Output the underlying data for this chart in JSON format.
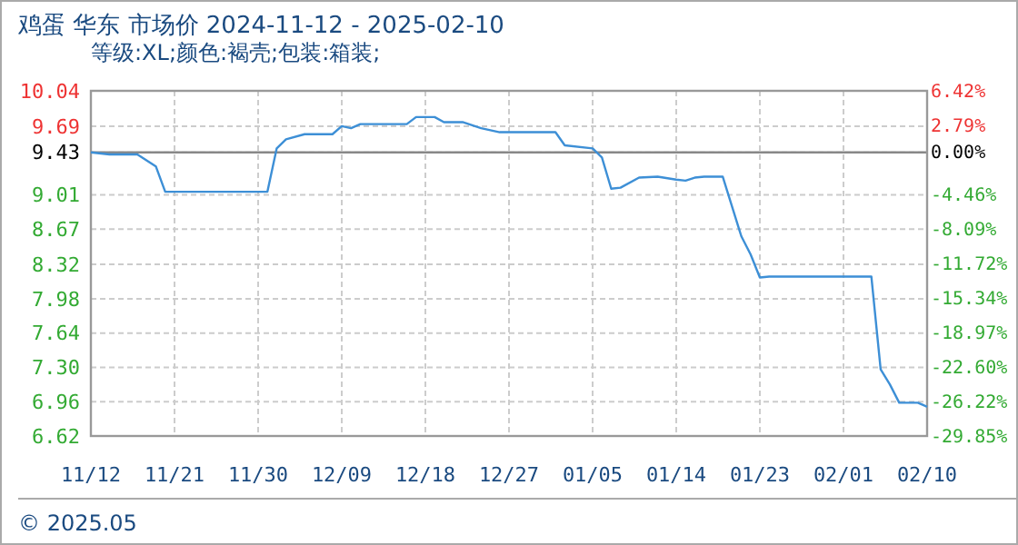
{
  "chart_data": {
    "type": "line",
    "title": "鸡蛋 华东 市场价 2024-11-12 - 2025-02-10",
    "subtitle": "等级:XL;颜色:褐壳;包装:箱装;",
    "x": [
      "2024-11-12",
      "2024-11-14",
      "2024-11-17",
      "2024-11-19",
      "2024-11-20",
      "2024-12-01",
      "2024-12-02",
      "2024-12-03",
      "2024-12-05",
      "2024-12-08",
      "2024-12-09",
      "2024-12-10",
      "2024-12-11",
      "2024-12-16",
      "2024-12-17",
      "2024-12-19",
      "2024-12-20",
      "2024-12-22",
      "2024-12-24",
      "2024-12-26",
      "2025-01-01",
      "2025-01-02",
      "2025-01-05",
      "2025-01-06",
      "2025-01-07",
      "2025-01-08",
      "2025-01-10",
      "2025-01-12",
      "2025-01-14",
      "2025-01-15",
      "2025-01-16",
      "2025-01-17",
      "2025-01-19",
      "2025-01-21",
      "2025-01-22",
      "2025-01-23",
      "2025-01-24",
      "2025-02-04",
      "2025-02-05",
      "2025-02-06",
      "2025-02-07",
      "2025-02-09",
      "2025-02-10"
    ],
    "series": [
      {
        "color": "#3d8fd6",
        "values": [
          9.43,
          9.41,
          9.41,
          9.29,
          9.04,
          9.04,
          9.47,
          9.56,
          9.61,
          9.61,
          9.69,
          9.67,
          9.71,
          9.71,
          9.78,
          9.78,
          9.73,
          9.73,
          9.67,
          9.63,
          9.63,
          9.5,
          9.47,
          9.38,
          9.07,
          9.08,
          9.18,
          9.19,
          9.16,
          9.15,
          9.18,
          9.19,
          9.19,
          8.6,
          8.42,
          8.19,
          8.2,
          8.2,
          7.28,
          7.13,
          6.95,
          6.95,
          6.91
        ]
      }
    ],
    "xlim": [
      "2024-11-12",
      "2025-02-10"
    ],
    "xticks": [
      {
        "value": "2024-11-12",
        "label": "11/12"
      },
      {
        "value": "2024-11-21",
        "label": "11/21"
      },
      {
        "value": "2024-11-30",
        "label": "11/30"
      },
      {
        "value": "2024-12-09",
        "label": "12/09"
      },
      {
        "value": "2024-12-18",
        "label": "12/18"
      },
      {
        "value": "2024-12-27",
        "label": "12/27"
      },
      {
        "value": "2025-01-05",
        "label": "01/05"
      },
      {
        "value": "2025-01-14",
        "label": "01/14"
      },
      {
        "value": "2025-01-23",
        "label": "01/23"
      },
      {
        "value": "2025-02-01",
        "label": "02/01"
      },
      {
        "value": "2025-02-10",
        "label": "02/10"
      }
    ],
    "ylim": [
      6.62,
      10.04
    ],
    "yticks": [
      10.04,
      9.69,
      9.43,
      9.01,
      8.67,
      8.32,
      7.98,
      7.64,
      {
        "value": 7.3,
        "label": "7.30"
      },
      6.96,
      6.62
    ],
    "y2lim": [
      -29.85,
      6.42
    ],
    "y2ticks": [
      {
        "value": 6.42,
        "label": "6.42%"
      },
      {
        "value": 2.79,
        "label": "2.79%"
      },
      {
        "value": 0,
        "label": "0.00%"
      },
      {
        "value": -4.46,
        "label": "-4.46%"
      },
      {
        "value": -8.09,
        "label": "-8.09%"
      },
      {
        "value": -11.72,
        "label": "-11.72%"
      },
      {
        "value": -15.34,
        "label": "-15.34%"
      },
      {
        "value": -18.97,
        "label": "-18.97%"
      },
      {
        "value": -22.6,
        "label": "-22.60%"
      },
      {
        "value": -26.22,
        "label": "-26.22%"
      },
      {
        "value": -29.85,
        "label": "-29.85%"
      }
    ],
    "ref_lines": [
      {
        "axis": "y",
        "value": 9.43,
        "color": "#888888",
        "line_style": "solid"
      }
    ],
    "grid": true,
    "marker": "none",
    "line_style": "solid",
    "annotations": [
      "© 2025.05"
    ]
  }
}
